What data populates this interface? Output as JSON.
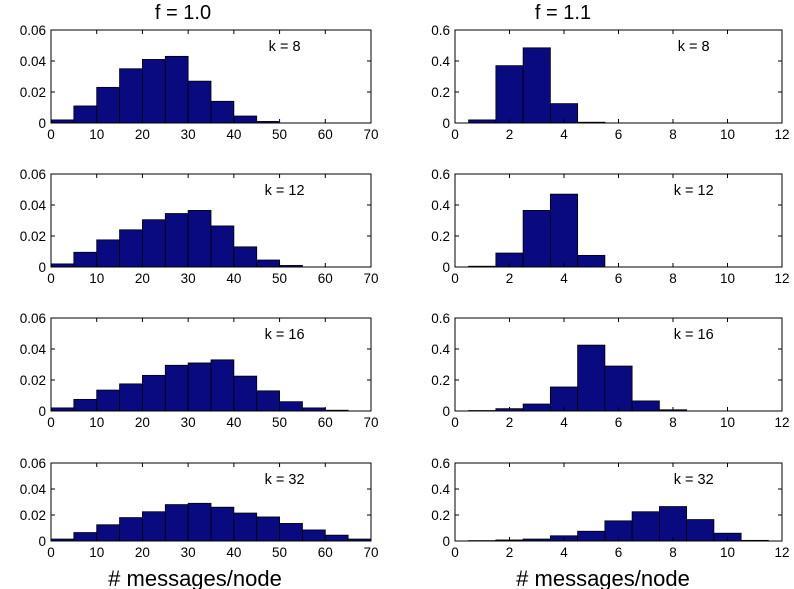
{
  "columns": [
    {
      "title": "f = 1.0",
      "xlabel": "# messages/node"
    },
    {
      "title": "f = 1.1",
      "xlabel": "# messages/node"
    }
  ],
  "chart_data": [
    {
      "type": "bar",
      "column": 0,
      "row": 0,
      "annotation": "k = 8",
      "bin_width": 5,
      "bin_start": 0,
      "xlim": [
        0,
        70
      ],
      "ylim": [
        0,
        0.06
      ],
      "xticks": [
        0,
        10,
        20,
        30,
        40,
        50,
        60,
        70
      ],
      "yticks": [
        0,
        0.02,
        0.04,
        0.06
      ],
      "x": [
        2.5,
        7.5,
        12.5,
        17.5,
        22.5,
        27.5,
        32.5,
        37.5,
        42.5,
        47.5,
        52.5,
        57.5,
        62.5,
        67.5
      ],
      "values": [
        0.002,
        0.011,
        0.023,
        0.035,
        0.041,
        0.043,
        0.027,
        0.014,
        0.0045,
        0.001,
        0.0,
        0.0,
        0.0,
        0.0
      ]
    },
    {
      "type": "bar",
      "column": 0,
      "row": 1,
      "annotation": "k = 12",
      "bin_width": 5,
      "bin_start": 0,
      "xlim": [
        0,
        70
      ],
      "ylim": [
        0,
        0.06
      ],
      "xticks": [
        0,
        10,
        20,
        30,
        40,
        50,
        60,
        70
      ],
      "yticks": [
        0,
        0.02,
        0.04,
        0.06
      ],
      "x": [
        2.5,
        7.5,
        12.5,
        17.5,
        22.5,
        27.5,
        32.5,
        37.5,
        42.5,
        47.5,
        52.5,
        57.5,
        62.5,
        67.5
      ],
      "values": [
        0.002,
        0.0095,
        0.0175,
        0.024,
        0.0305,
        0.0345,
        0.0365,
        0.0265,
        0.013,
        0.0045,
        0.001,
        0.0,
        0.0,
        0.0
      ]
    },
    {
      "type": "bar",
      "column": 0,
      "row": 2,
      "annotation": "k = 16",
      "bin_width": 5,
      "bin_start": 0,
      "xlim": [
        0,
        70
      ],
      "ylim": [
        0,
        0.06
      ],
      "xticks": [
        0,
        10,
        20,
        30,
        40,
        50,
        60,
        70
      ],
      "yticks": [
        0,
        0.02,
        0.04,
        0.06
      ],
      "x": [
        2.5,
        7.5,
        12.5,
        17.5,
        22.5,
        27.5,
        32.5,
        37.5,
        42.5,
        47.5,
        52.5,
        57.5,
        62.5,
        67.5
      ],
      "values": [
        0.002,
        0.0075,
        0.0135,
        0.0175,
        0.023,
        0.0295,
        0.031,
        0.033,
        0.0225,
        0.013,
        0.006,
        0.002,
        0.0005,
        0.0
      ]
    },
    {
      "type": "bar",
      "column": 0,
      "row": 3,
      "annotation": "k = 32",
      "bin_width": 5,
      "bin_start": 0,
      "xlim": [
        0,
        70
      ],
      "ylim": [
        0,
        0.06
      ],
      "xticks": [
        0,
        10,
        20,
        30,
        40,
        50,
        60,
        70
      ],
      "yticks": [
        0,
        0.02,
        0.04,
        0.06
      ],
      "x": [
        2.5,
        7.5,
        12.5,
        17.5,
        22.5,
        27.5,
        32.5,
        37.5,
        42.5,
        47.5,
        52.5,
        57.5,
        62.5,
        67.5
      ],
      "values": [
        0.0015,
        0.0065,
        0.0125,
        0.018,
        0.0225,
        0.028,
        0.029,
        0.026,
        0.0215,
        0.0185,
        0.0135,
        0.0085,
        0.0045,
        0.0015
      ]
    },
    {
      "type": "bar",
      "column": 1,
      "row": 0,
      "annotation": "k = 8",
      "bin_width": 1,
      "bin_start": 0.5,
      "xlim": [
        0,
        12
      ],
      "ylim": [
        0,
        0.6
      ],
      "xticks": [
        0,
        2,
        4,
        6,
        8,
        10,
        12
      ],
      "yticks": [
        0,
        0.2,
        0.4,
        0.6
      ],
      "x": [
        1,
        2,
        3,
        4,
        5,
        6,
        7,
        8,
        9,
        10,
        11
      ],
      "values": [
        0.02,
        0.37,
        0.485,
        0.125,
        0.005,
        0.0,
        0.0,
        0.0,
        0.0,
        0.0,
        0.0
      ]
    },
    {
      "type": "bar",
      "column": 1,
      "row": 1,
      "annotation": "k = 12",
      "bin_width": 1,
      "bin_start": 0.5,
      "xlim": [
        0,
        12
      ],
      "ylim": [
        0,
        0.6
      ],
      "xticks": [
        0,
        2,
        4,
        6,
        8,
        10,
        12
      ],
      "yticks": [
        0,
        0.2,
        0.4,
        0.6
      ],
      "x": [
        1,
        2,
        3,
        4,
        5,
        6,
        7,
        8,
        9,
        10,
        11
      ],
      "values": [
        0.005,
        0.09,
        0.365,
        0.47,
        0.075,
        0.0,
        0.0,
        0.0,
        0.0,
        0.0,
        0.0
      ]
    },
    {
      "type": "bar",
      "column": 1,
      "row": 2,
      "annotation": "k = 16",
      "bin_width": 1,
      "bin_start": 0.5,
      "xlim": [
        0,
        12
      ],
      "ylim": [
        0,
        0.6
      ],
      "xticks": [
        0,
        2,
        4,
        6,
        8,
        10,
        12
      ],
      "yticks": [
        0,
        0.2,
        0.4,
        0.6
      ],
      "x": [
        1,
        2,
        3,
        4,
        5,
        6,
        7,
        8,
        9,
        10,
        11
      ],
      "values": [
        0.003,
        0.015,
        0.045,
        0.155,
        0.425,
        0.29,
        0.065,
        0.008,
        0.0,
        0.0,
        0.0
      ]
    },
    {
      "type": "bar",
      "column": 1,
      "row": 3,
      "annotation": "k = 32",
      "bin_width": 1,
      "bin_start": 0.5,
      "xlim": [
        0,
        12
      ],
      "ylim": [
        0,
        0.6
      ],
      "xticks": [
        0,
        2,
        4,
        6,
        8,
        10,
        12
      ],
      "yticks": [
        0,
        0.2,
        0.4,
        0.6
      ],
      "x": [
        1,
        2,
        3,
        4,
        5,
        6,
        7,
        8,
        9,
        10,
        11
      ],
      "values": [
        0.003,
        0.008,
        0.015,
        0.04,
        0.075,
        0.155,
        0.225,
        0.265,
        0.165,
        0.06,
        0.005
      ]
    }
  ],
  "colors": {
    "bar_fill": "#0a0a80",
    "bar_edge": "#000000",
    "axis": "#000000",
    "background": "#ffffff"
  }
}
